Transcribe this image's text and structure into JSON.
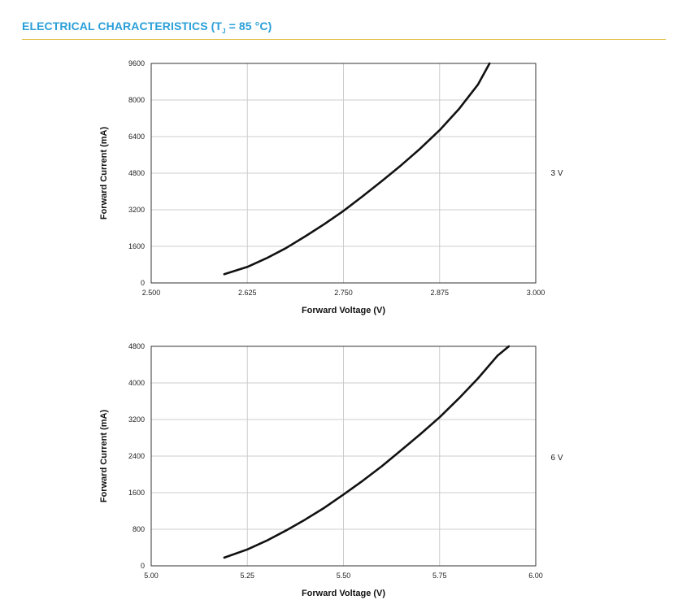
{
  "header": {
    "title_prefix": "ELECTRICAL CHARACTERISTICS (T",
    "title_sub": "J",
    "title_suffix": " = 85 °C)",
    "accent_color": "#2a9fd8",
    "rule_color": "#e3c24a"
  },
  "chart_data": [
    {
      "type": "line",
      "xlabel": "Forward Voltage (V)",
      "ylabel": "Forward Current (mA)",
      "side_label": "3 V",
      "xlim": [
        2.5,
        3.0
      ],
      "ylim": [
        0,
        9600
      ],
      "x_ticks": [
        "2.500",
        "2.625",
        "2.750",
        "2.875",
        "3.000"
      ],
      "x_tick_values": [
        2.5,
        2.625,
        2.75,
        2.875,
        3.0
      ],
      "y_ticks": [
        "0",
        "1600",
        "3200",
        "4800",
        "6400",
        "8000",
        "9600"
      ],
      "y_tick_values": [
        0,
        1600,
        3200,
        4800,
        6400,
        8000,
        9600
      ],
      "grid": true,
      "line_color": "#111111",
      "series": [
        {
          "x": [
            2.595,
            2.625,
            2.65,
            2.675,
            2.7,
            2.725,
            2.75,
            2.775,
            2.8,
            2.825,
            2.85,
            2.875,
            2.9,
            2.925,
            2.94
          ],
          "y": [
            380,
            700,
            1080,
            1520,
            2030,
            2570,
            3150,
            3790,
            4460,
            5150,
            5880,
            6680,
            7600,
            8680,
            9600
          ]
        }
      ]
    },
    {
      "type": "line",
      "xlabel": "Forward Voltage (V)",
      "ylabel": "Forward Current (mA)",
      "side_label": "6 V",
      "xlim": [
        5.0,
        6.0
      ],
      "ylim": [
        0,
        4800
      ],
      "x_ticks": [
        "5.00",
        "5.25",
        "5.50",
        "5.75",
        "6.00"
      ],
      "x_tick_values": [
        5.0,
        5.25,
        5.5,
        5.75,
        6.0
      ],
      "y_ticks": [
        "0",
        "800",
        "1600",
        "2400",
        "3200",
        "4000",
        "4800"
      ],
      "y_tick_values": [
        0,
        800,
        1600,
        2400,
        3200,
        4000,
        4800
      ],
      "grid": true,
      "line_color": "#111111",
      "series": [
        {
          "x": [
            5.19,
            5.25,
            5.3,
            5.35,
            5.4,
            5.45,
            5.5,
            5.55,
            5.6,
            5.65,
            5.7,
            5.75,
            5.8,
            5.85,
            5.9,
            5.93
          ],
          "y": [
            180,
            360,
            550,
            770,
            1010,
            1270,
            1560,
            1860,
            2180,
            2530,
            2880,
            3250,
            3660,
            4100,
            4590,
            4800
          ]
        }
      ]
    }
  ]
}
